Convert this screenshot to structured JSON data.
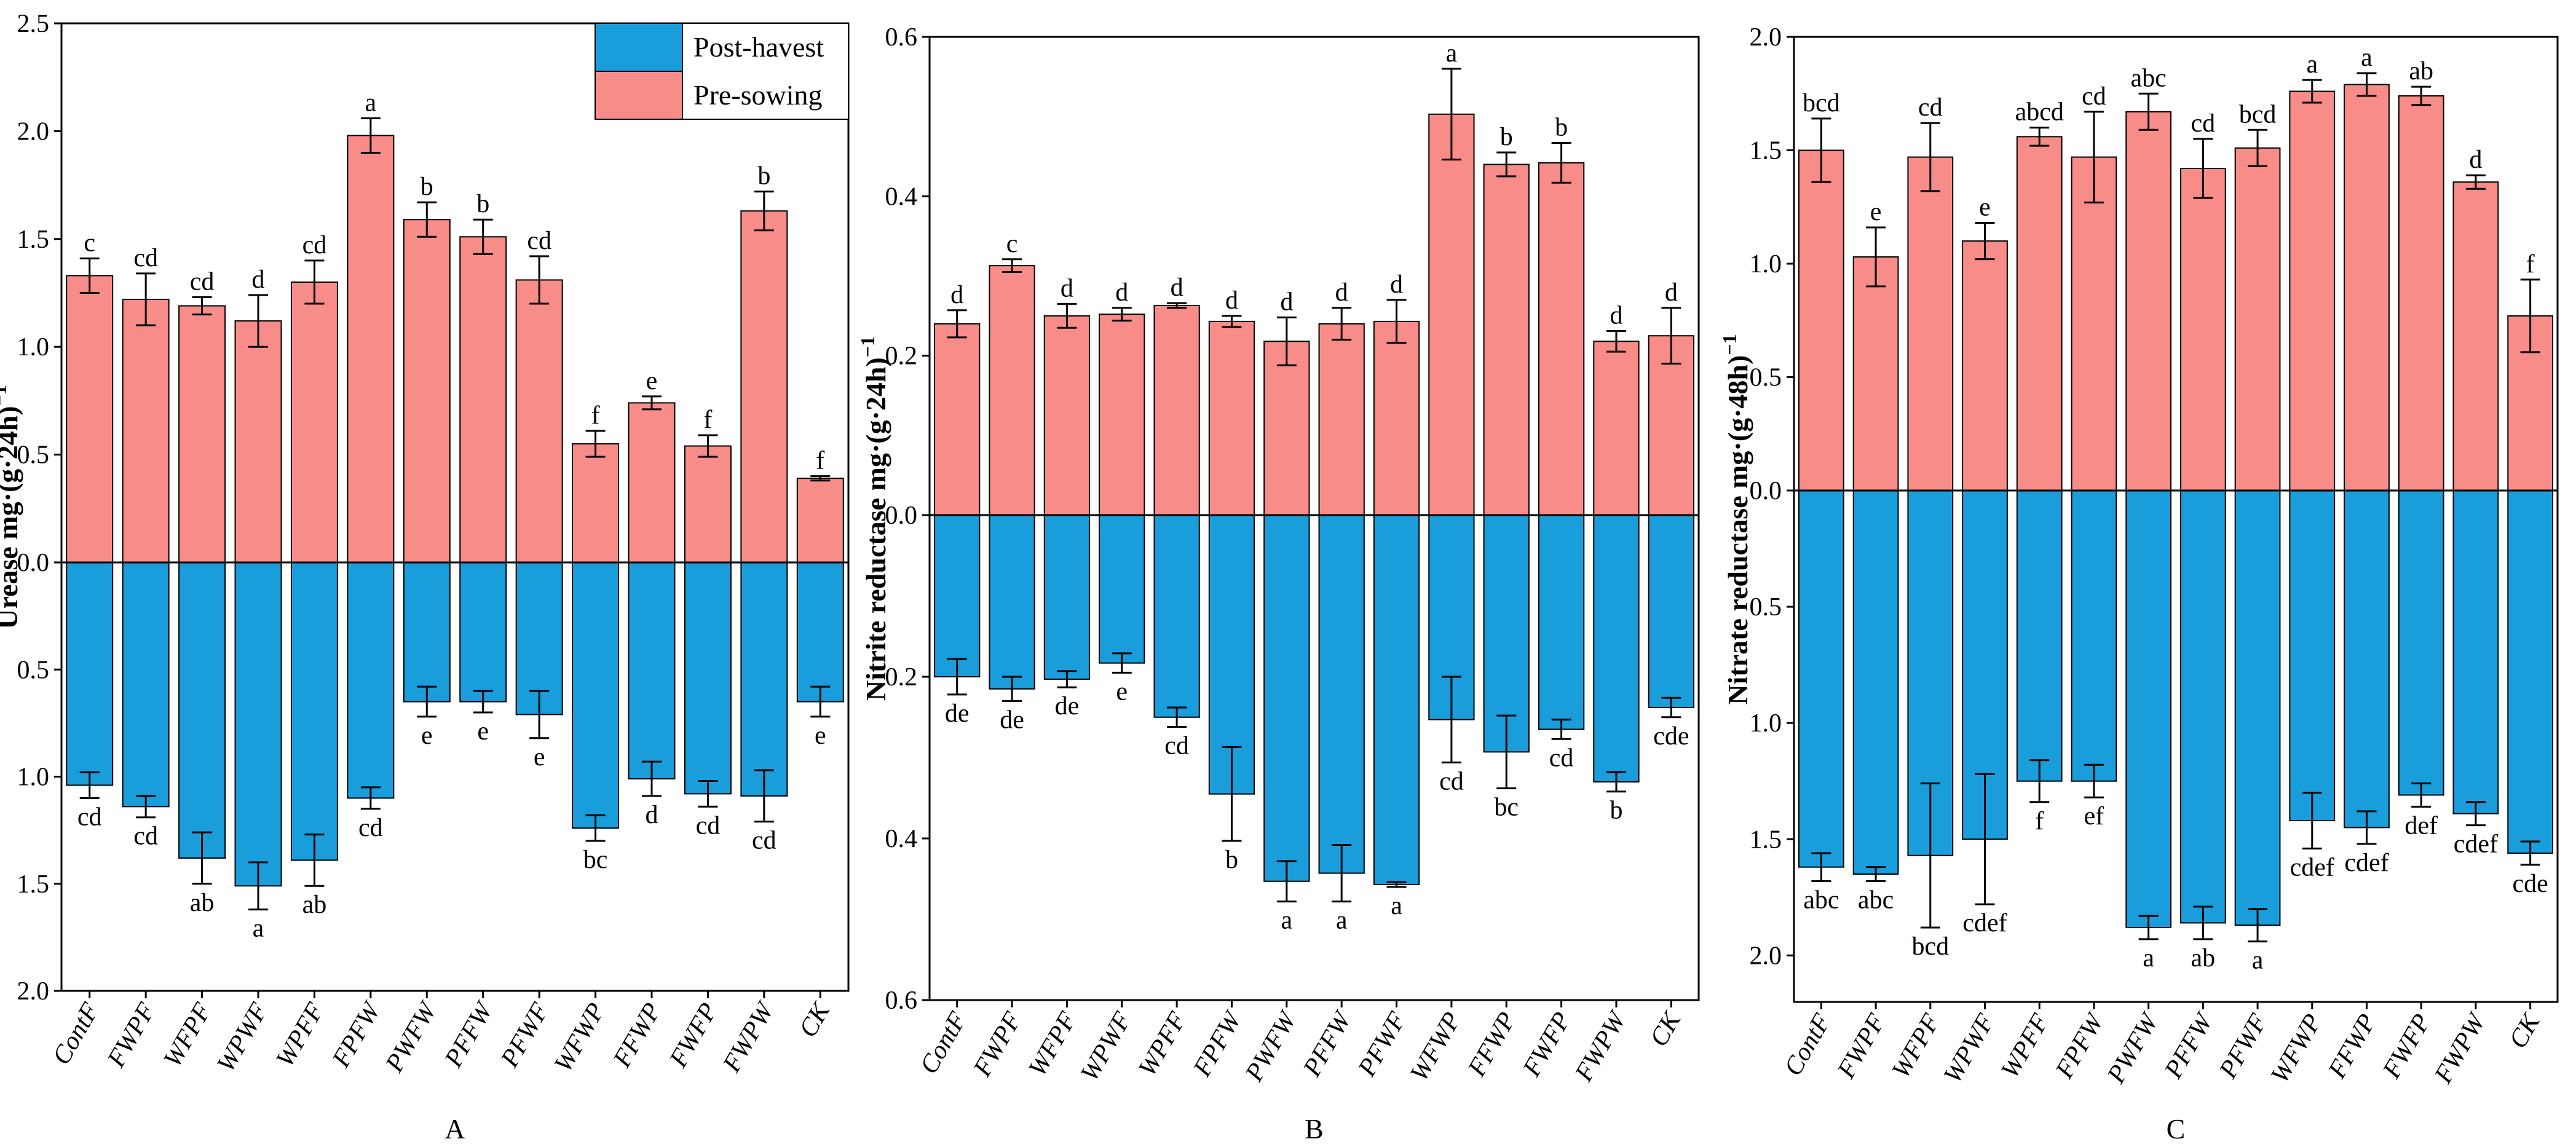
{
  "figure": {
    "legend": [
      {
        "name": "Post-havest",
        "color": "#1A9DDB"
      },
      {
        "name": "Pre-sowing",
        "color": "#F88C88"
      }
    ],
    "colors": {
      "post": "#1A9DDB",
      "pre": "#F88C88",
      "axis": "#000000"
    }
  },
  "chart_data": [
    {
      "type": "bar",
      "panel_label": "A",
      "title": "",
      "ylabel": "Urease mg·(g·24h)",
      "ylabel_exponent": "−1",
      "categories": [
        "ContF",
        "FWPF",
        "WFPF",
        "WPWF",
        "WPFF",
        "FPFW",
        "PWFW",
        "PFFW",
        "PFWF",
        "WFWP",
        "FFWP",
        "FWFP",
        "FWPW",
        "CK"
      ],
      "upper_ticks": [
        "0.0",
        "0.5",
        "1.0",
        "1.5",
        "2.0",
        "2.5"
      ],
      "lower_ticks": [
        "0.5",
        "1.0",
        "1.5",
        "2.0"
      ],
      "ylim_top": 2.5,
      "ylim_bottom": 2.0,
      "series": [
        {
          "name": "Pre-sowing",
          "direction": "up",
          "values": [
            1.33,
            1.22,
            1.19,
            1.12,
            1.3,
            1.98,
            1.59,
            1.51,
            1.31,
            0.55,
            0.74,
            0.54,
            1.63,
            0.39
          ],
          "errors": [
            0.08,
            0.12,
            0.04,
            0.12,
            0.1,
            0.08,
            0.08,
            0.08,
            0.11,
            0.06,
            0.03,
            0.05,
            0.09,
            0.01
          ],
          "letters": [
            "c",
            "cd",
            "cd",
            "d",
            "cd",
            "a",
            "b",
            "b",
            "cd",
            "f",
            "e",
            "f",
            "b",
            "f"
          ]
        },
        {
          "name": "Post-havest",
          "direction": "down",
          "values": [
            1.04,
            1.14,
            1.38,
            1.51,
            1.39,
            1.1,
            0.65,
            0.65,
            0.71,
            1.24,
            1.01,
            1.08,
            1.09,
            0.65
          ],
          "errors": [
            0.06,
            0.05,
            0.12,
            0.11,
            0.12,
            0.05,
            0.07,
            0.05,
            0.11,
            0.06,
            0.08,
            0.06,
            0.12,
            0.07
          ],
          "letters": [
            "cd",
            "cd",
            "ab",
            "a",
            "ab",
            "cd",
            "e",
            "e",
            "e",
            "bc",
            "d",
            "cd",
            "cd",
            "e"
          ]
        }
      ]
    },
    {
      "type": "bar",
      "panel_label": "B",
      "title": "",
      "ylabel": "Nitrite reductase mg·(g·24h)",
      "ylabel_exponent": "−1",
      "categories": [
        "ContF",
        "FWPF",
        "WFPF",
        "WPWF",
        "WPFF",
        "FPFW",
        "PWFW",
        "PFFW",
        "PFWF",
        "WFWP",
        "FFWP",
        "FWFP",
        "FWPW",
        "CK"
      ],
      "upper_ticks": [
        "0.0",
        "0.2",
        "0.4",
        "0.6"
      ],
      "lower_ticks": [
        "0.2",
        "0.4",
        "0.6"
      ],
      "ylim_top": 0.6,
      "ylim_bottom": 0.6,
      "series": [
        {
          "name": "Pre-sowing",
          "direction": "up",
          "values": [
            0.24,
            0.313,
            0.25,
            0.252,
            0.263,
            0.243,
            0.218,
            0.24,
            0.243,
            0.503,
            0.44,
            0.442,
            0.218,
            0.225
          ],
          "errors": [
            0.017,
            0.008,
            0.015,
            0.008,
            0.003,
            0.007,
            0.03,
            0.02,
            0.027,
            0.057,
            0.015,
            0.025,
            0.013,
            0.035
          ],
          "letters": [
            "d",
            "c",
            "d",
            "d",
            "d",
            "d",
            "d",
            "d",
            "d",
            "a",
            "b",
            "b",
            "d",
            "d"
          ]
        },
        {
          "name": "Post-havest",
          "direction": "down",
          "values": [
            0.2,
            0.215,
            0.203,
            0.183,
            0.25,
            0.345,
            0.453,
            0.443,
            0.457,
            0.253,
            0.293,
            0.265,
            0.33,
            0.238
          ],
          "errors": [
            0.022,
            0.015,
            0.01,
            0.012,
            0.012,
            0.058,
            0.025,
            0.035,
            0.003,
            0.053,
            0.045,
            0.012,
            0.012,
            0.012
          ],
          "letters": [
            "de",
            "de",
            "de",
            "e",
            "cd",
            "b",
            "a",
            "a",
            "a",
            "cd",
            "bc",
            "cd",
            "b",
            "cde"
          ]
        }
      ]
    },
    {
      "type": "bar",
      "panel_label": "C",
      "title": "",
      "ylabel": "Nitrate reductase mg·(g·48h)",
      "ylabel_exponent": "−1",
      "categories": [
        "ContF",
        "FWPF",
        "WFPF",
        "WPWF",
        "WPFF",
        "FPFW",
        "PWFW",
        "PFFW",
        "PFWF",
        "WFWP",
        "FFWP",
        "FWFP",
        "FWPW",
        "CK"
      ],
      "upper_ticks": [
        "0.0",
        "0.5",
        "1.0",
        "1.5",
        "2.0"
      ],
      "lower_ticks": [
        "0.5",
        "1.0",
        "1.5",
        "2.0"
      ],
      "ylim_top": 2.0,
      "ylim_bottom": 2.2,
      "series": [
        {
          "name": "Pre-sowing",
          "direction": "up",
          "values": [
            1.5,
            1.03,
            1.47,
            1.1,
            1.56,
            1.47,
            1.67,
            1.42,
            1.51,
            1.76,
            1.79,
            1.74,
            1.36,
            0.77
          ],
          "errors": [
            0.14,
            0.13,
            0.15,
            0.08,
            0.04,
            0.2,
            0.08,
            0.13,
            0.08,
            0.05,
            0.05,
            0.04,
            0.03,
            0.16
          ],
          "letters": [
            "bcd",
            "e",
            "cd",
            "e",
            "abcd",
            "cd",
            "abc",
            "cd",
            "bcd",
            "a",
            "a",
            "ab",
            "d",
            "f"
          ]
        },
        {
          "name": "Post-havest",
          "direction": "down",
          "values": [
            1.62,
            1.65,
            1.57,
            1.5,
            1.25,
            1.25,
            1.88,
            1.86,
            1.87,
            1.42,
            1.45,
            1.31,
            1.39,
            1.56
          ],
          "errors": [
            0.06,
            0.03,
            0.31,
            0.28,
            0.09,
            0.07,
            0.05,
            0.07,
            0.07,
            0.12,
            0.07,
            0.05,
            0.05,
            0.05
          ],
          "letters": [
            "abc",
            "abc",
            "bcd",
            "cdef",
            "f",
            "ef",
            "a",
            "ab",
            "a",
            "cdef",
            "cdef",
            "def",
            "cdef",
            "cde"
          ]
        }
      ]
    }
  ]
}
